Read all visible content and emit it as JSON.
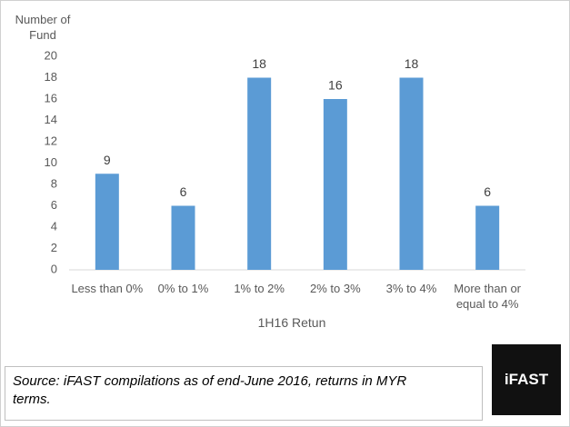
{
  "chart_data": {
    "type": "bar",
    "y_label": "Number of Fund",
    "x_label": "1H16 Retun",
    "categories": [
      "Less than 0%",
      "0% to 1%",
      "1% to 2%",
      "2% to 3%",
      "3% to 4%",
      "More than or equal to 4%"
    ],
    "values": [
      9,
      6,
      18,
      16,
      18,
      6
    ],
    "color": "#5b9bd5",
    "ylim": [
      0,
      20
    ],
    "yticks": [
      0,
      2,
      4,
      6,
      8,
      10,
      12,
      14,
      16,
      18,
      20
    ]
  },
  "footer": {
    "source": "Source: iFAST compilations as of end-June 2016, returns in MYR terms.",
    "logo": "iFAST"
  }
}
